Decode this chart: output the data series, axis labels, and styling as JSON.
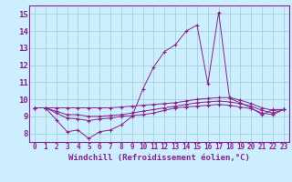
{
  "background_color": "#cceeff",
  "line_color": "#882288",
  "grid_color": "#99cccc",
  "xlabel": "Windchill (Refroidissement éolien,°C)",
  "xlabel_fontsize": 6.5,
  "ytick_fontsize": 6.5,
  "xtick_fontsize": 5.5,
  "xlim": [
    -0.5,
    23.5
  ],
  "ylim": [
    7.5,
    15.5
  ],
  "yticks": [
    8,
    9,
    10,
    11,
    12,
    13,
    14,
    15
  ],
  "xticks": [
    0,
    1,
    2,
    3,
    4,
    5,
    6,
    7,
    8,
    9,
    10,
    11,
    12,
    13,
    14,
    15,
    16,
    17,
    18,
    19,
    20,
    21,
    22,
    23
  ],
  "line1_x": [
    0,
    1,
    2,
    3,
    4,
    5,
    6,
    7,
    8,
    9,
    10,
    11,
    12,
    13,
    14,
    15,
    16,
    17,
    18,
    19,
    20,
    21,
    22,
    23
  ],
  "line1_y": [
    9.5,
    9.5,
    8.8,
    8.1,
    8.2,
    7.7,
    8.1,
    8.2,
    8.5,
    9.0,
    10.6,
    11.9,
    12.8,
    13.2,
    14.0,
    14.35,
    10.9,
    15.1,
    10.05,
    9.8,
    9.5,
    9.1,
    9.4,
    9.4
  ],
  "line2_x": [
    0,
    1,
    2,
    3,
    4,
    5,
    6,
    7,
    8,
    9,
    10,
    11,
    12,
    13,
    14,
    15,
    16,
    17,
    18,
    19,
    20,
    21,
    22,
    23
  ],
  "line2_y": [
    9.5,
    9.5,
    9.5,
    9.5,
    9.5,
    9.5,
    9.5,
    9.5,
    9.55,
    9.6,
    9.65,
    9.7,
    9.75,
    9.8,
    9.9,
    10.0,
    10.05,
    10.1,
    10.1,
    9.95,
    9.75,
    9.5,
    9.35,
    9.4
  ],
  "line3_x": [
    0,
    1,
    2,
    3,
    4,
    5,
    6,
    7,
    8,
    9,
    10,
    11,
    12,
    13,
    14,
    15,
    16,
    17,
    18,
    19,
    20,
    21,
    22,
    23
  ],
  "line3_y": [
    9.5,
    9.5,
    9.3,
    9.1,
    9.1,
    9.0,
    9.0,
    9.05,
    9.1,
    9.2,
    9.3,
    9.4,
    9.5,
    9.6,
    9.7,
    9.8,
    9.85,
    9.9,
    9.85,
    9.75,
    9.6,
    9.35,
    9.2,
    9.4
  ],
  "line4_x": [
    0,
    1,
    2,
    3,
    4,
    5,
    6,
    7,
    8,
    9,
    10,
    11,
    12,
    13,
    14,
    15,
    16,
    17,
    18,
    19,
    20,
    21,
    22,
    23
  ],
  "line4_y": [
    9.5,
    9.5,
    9.2,
    8.9,
    8.85,
    8.75,
    8.85,
    8.9,
    9.0,
    9.05,
    9.1,
    9.2,
    9.35,
    9.5,
    9.55,
    9.6,
    9.65,
    9.7,
    9.65,
    9.55,
    9.45,
    9.2,
    9.1,
    9.4
  ]
}
